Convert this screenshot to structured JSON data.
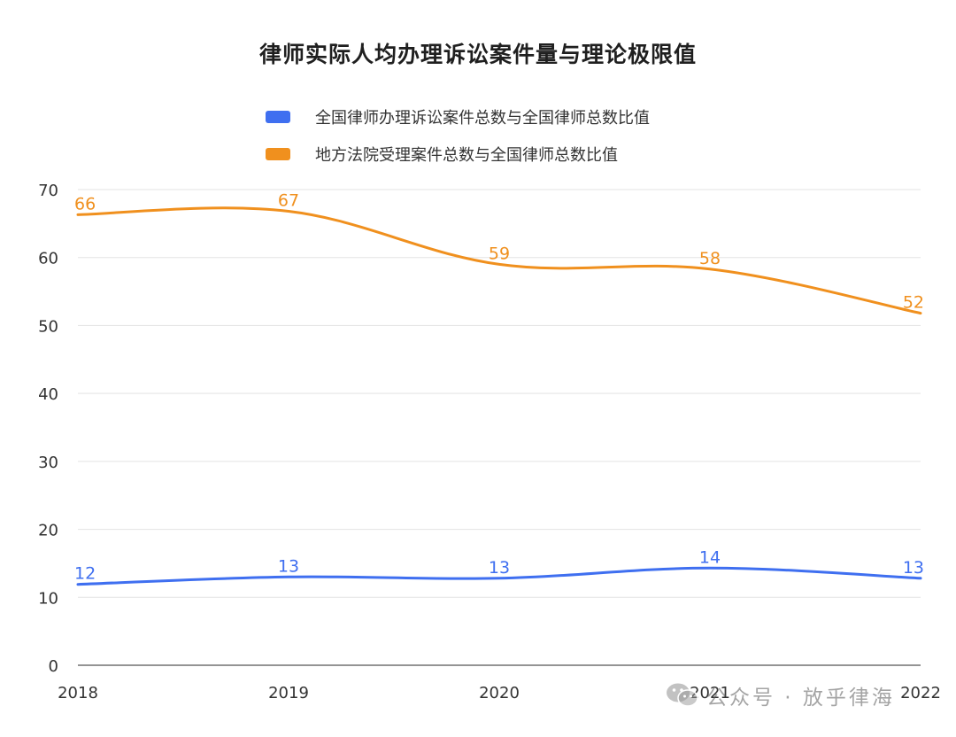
{
  "chart_data": {
    "type": "line",
    "title": "律师实际人均办理诉讼案件量与理论极限值",
    "categories": [
      "2018",
      "2019",
      "2020",
      "2021",
      "2022"
    ],
    "ylim": [
      0,
      70
    ],
    "yticks": [
      0,
      10,
      20,
      30,
      40,
      50,
      60,
      70
    ],
    "grid": true,
    "legend_position": "top",
    "smooth": true,
    "series": [
      {
        "name": "全国律师办理诉讼案件总数与全国律师总数比值",
        "color": "#3f6ff0",
        "values": [
          11.9,
          13.0,
          12.8,
          14.3,
          12.8
        ],
        "labels": [
          "12",
          "13",
          "13",
          "14",
          "13"
        ]
      },
      {
        "name": "地方法院受理案件总数与全国律师总数比值",
        "color": "#f0901e",
        "values": [
          66.3,
          66.8,
          59.0,
          58.3,
          51.8
        ],
        "labels": [
          "66",
          "67",
          "59",
          "58",
          "52"
        ]
      }
    ]
  },
  "watermark": {
    "icon": "wechat-icon",
    "text": "公众号 · 放乎律海"
  }
}
